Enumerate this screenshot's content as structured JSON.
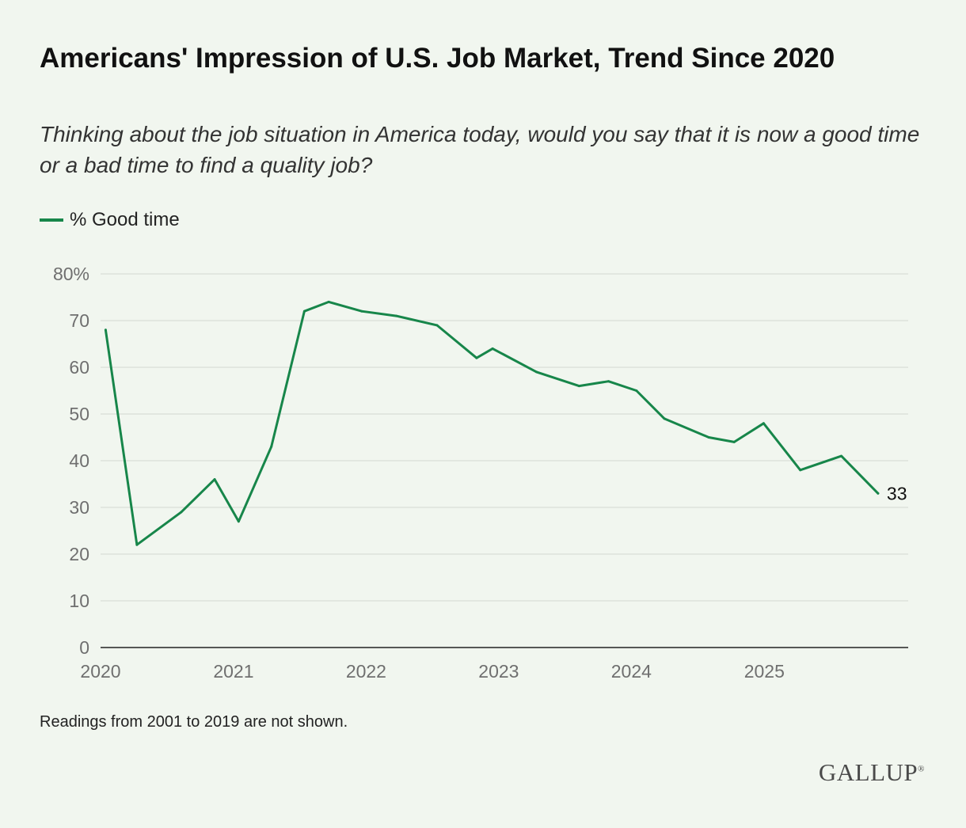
{
  "title": "Americans' Impression of U.S. Job Market, Trend Since 2020",
  "subtitle": "Thinking about the job situation in America today, would you say that it is now a good time or a bad time to find a quality job?",
  "note": "Readings from 2001 to 2019 are not shown.",
  "brand": "GALLUP",
  "colors": {
    "background": "#f1f6ef",
    "series": "#17864a",
    "grid": "#d4d8d2",
    "axis": "#222222",
    "tick_text": "#6f6f6f"
  },
  "chart_data": {
    "type": "line",
    "legend_position": "top-left",
    "grid": true,
    "xlim": [
      "2020-01-01",
      "2026-02-01"
    ],
    "ylim": [
      0,
      80
    ],
    "x_ticks": [
      "2020",
      "2021",
      "2022",
      "2023",
      "2024",
      "2025"
    ],
    "y_ticks": [
      "0",
      "10",
      "20",
      "30",
      "40",
      "50",
      "60",
      "70",
      "80%"
    ],
    "series": [
      {
        "name": "% Good time",
        "end_label": "33",
        "x": [
          "2020-01-15",
          "2020-04-10",
          "2020-08-10",
          "2020-11-10",
          "2021-01-15",
          "2021-04-15",
          "2021-07-15",
          "2021-09-20",
          "2021-12-20",
          "2022-03-25",
          "2022-07-15",
          "2022-11-01",
          "2022-12-15",
          "2023-04-15",
          "2023-08-10",
          "2023-10-30",
          "2024-01-15",
          "2024-04-01",
          "2024-08-01",
          "2024-10-10",
          "2024-12-30",
          "2025-04-10",
          "2025-08-01",
          "2025-11-10"
        ],
        "values": [
          68,
          22,
          29,
          36,
          27,
          43,
          72,
          74,
          72,
          71,
          69,
          62,
          64,
          59,
          56,
          57,
          55,
          49,
          45,
          44,
          48,
          38,
          41,
          33
        ]
      }
    ]
  }
}
